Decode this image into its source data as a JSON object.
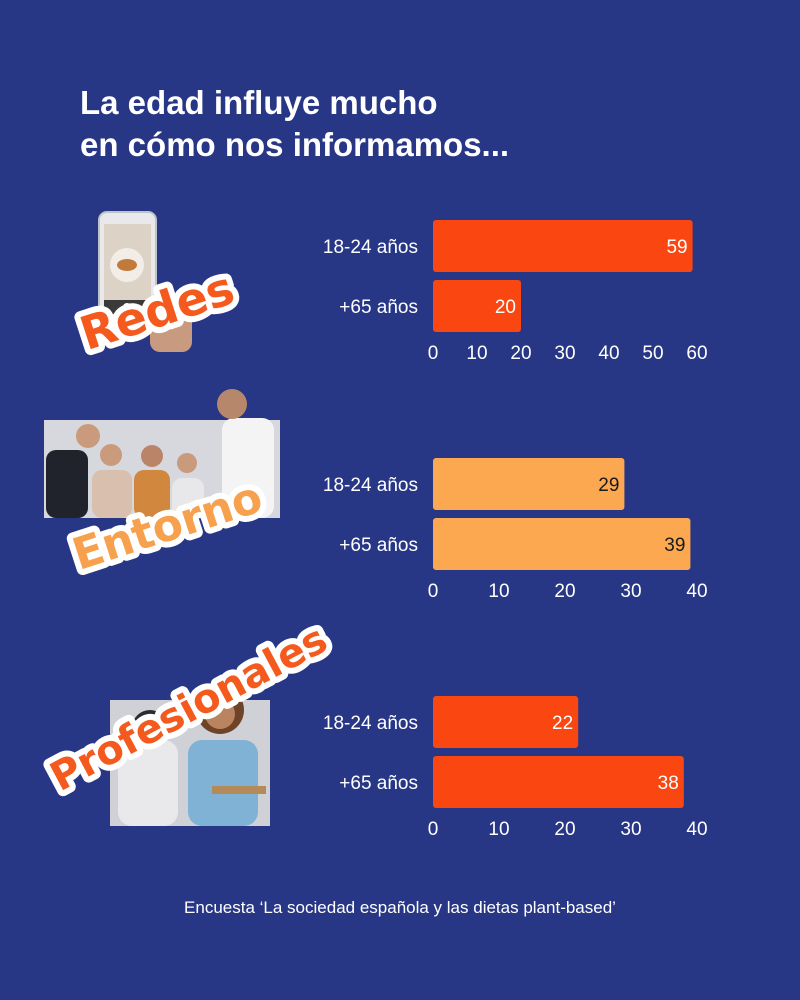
{
  "title": {
    "line1": "La edad influye mucho",
    "line2": "en cómo nos informamos..."
  },
  "source": "Encuesta ‘La sociedad española y las dietas plant-based’",
  "colors": {
    "background": "#283785",
    "orange_red": "#FA4611",
    "light_orange": "#FBA850",
    "sticker_text_orange": "#F45A1E",
    "sticker_text_light": "#F7A04E"
  },
  "chart_data": [
    {
      "type": "bar",
      "orientation": "horizontal",
      "sticker": "Redes",
      "categories": [
        "18-24 años",
        "+65 años"
      ],
      "values": [
        59,
        20
      ],
      "xlim": [
        0,
        60
      ],
      "xticks": [
        0,
        10,
        20,
        30,
        40,
        50,
        60
      ],
      "bar_color": "#FA4611",
      "label_color": "#ffffff"
    },
    {
      "type": "bar",
      "orientation": "horizontal",
      "sticker": "Entorno",
      "categories": [
        "18-24 años",
        "+65 años"
      ],
      "values": [
        29,
        39
      ],
      "xlim": [
        0,
        40
      ],
      "xticks": [
        0,
        10,
        20,
        30,
        40
      ],
      "bar_color": "#FBA850",
      "label_color": "#1a1a1a"
    },
    {
      "type": "bar",
      "orientation": "horizontal",
      "sticker": "Profesionales",
      "categories": [
        "18-24 años",
        "+65 años"
      ],
      "values": [
        22,
        38
      ],
      "xlim": [
        0,
        40
      ],
      "xticks": [
        0,
        10,
        20,
        30,
        40
      ],
      "bar_color": "#FA4611",
      "label_color": "#ffffff"
    }
  ]
}
